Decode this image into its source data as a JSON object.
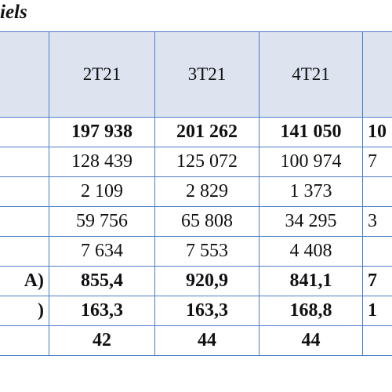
{
  "title": "iels",
  "table": {
    "header": [
      "2T21",
      "3T21",
      "4T21"
    ],
    "rows": [
      {
        "cells": [
          "197 938",
          "201 262",
          "141 050"
        ],
        "cut": "10",
        "bold": true
      },
      {
        "cells": [
          "128 439",
          "125 072",
          "100 974"
        ],
        "cut": "7",
        "bold": false
      },
      {
        "cells": [
          "2 109",
          "2 829",
          "1 373"
        ],
        "bold": false
      },
      {
        "cells": [
          "59 756",
          "65 808",
          "34 295"
        ],
        "cut": "3",
        "bold": false
      },
      {
        "cells": [
          "7 634",
          "7 553",
          "4 408"
        ],
        "bold": false
      },
      {
        "label": "A)",
        "cells": [
          "855,4",
          "920,9",
          "841,1"
        ],
        "cut": "7",
        "bold": true
      },
      {
        "label": ")",
        "cells": [
          "163,3",
          "163,3",
          "168,8"
        ],
        "cut": "1",
        "bold": true
      },
      {
        "cells": [
          "42",
          "44",
          "44"
        ],
        "bold": true
      }
    ]
  }
}
